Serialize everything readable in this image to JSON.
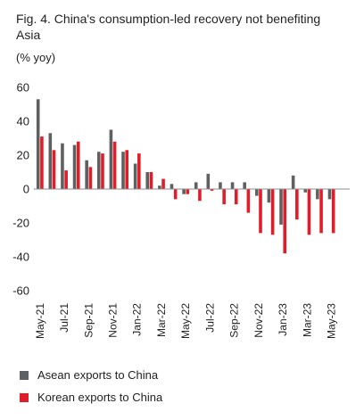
{
  "title": "Fig. 4. China's consumption-led recovery not benefiting Asia",
  "unit_label": "(% yoy)",
  "colors": {
    "asean": "#5f6062",
    "korea": "#e01e2a"
  },
  "chart_data": {
    "type": "bar",
    "ylim": [
      -60,
      60
    ],
    "yticks": [
      60,
      40,
      20,
      0,
      -20,
      -40,
      -60
    ],
    "categories": [
      "May-21",
      "Jun-21",
      "Jul-21",
      "Aug-21",
      "Sep-21",
      "Oct-21",
      "Nov-21",
      "Dec-21",
      "Jan-22",
      "Feb-22",
      "Mar-22",
      "Apr-22",
      "May-22",
      "Jun-22",
      "Jul-22",
      "Aug-22",
      "Sep-22",
      "Oct-22",
      "Nov-22",
      "Dec-22",
      "Jan-23",
      "Feb-23",
      "Mar-23",
      "Apr-23",
      "May-23",
      "Jun-23"
    ],
    "xtick_labels": [
      "May-21",
      "Jul-21",
      "Sep-21",
      "Nov-21",
      "Jan-22",
      "Mar-22",
      "May-22",
      "Jul-22",
      "Sep-22",
      "Nov-22",
      "Jan-23",
      "Mar-23",
      "May-23"
    ],
    "series": [
      {
        "name": "Asean exports to China",
        "values": [
          53,
          33,
          27,
          26,
          17,
          22,
          35,
          22,
          15,
          10,
          2,
          3,
          -3,
          4,
          9,
          4,
          4,
          4,
          -4,
          -8,
          -21,
          8,
          -2,
          -6,
          -6,
          null
        ]
      },
      {
        "name": "Korean exports to China",
        "values": [
          31,
          23,
          11,
          28,
          13,
          21,
          28,
          23,
          21,
          10,
          6,
          -6,
          -3,
          -7,
          -1,
          -9,
          -9,
          -14,
          -26,
          -27,
          -38,
          -18,
          -27,
          -26,
          -26,
          null
        ]
      }
    ],
    "legend_position": "bottom-left",
    "grid": false
  }
}
